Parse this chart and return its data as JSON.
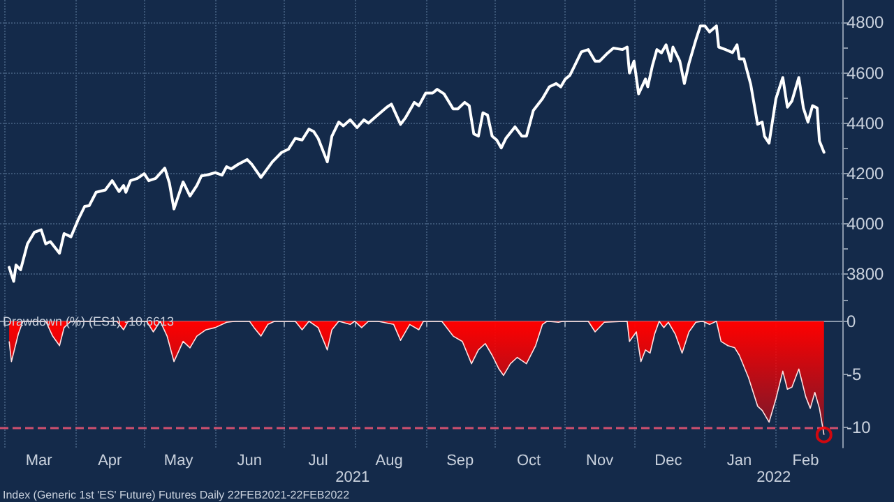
{
  "chart_data": [
    {
      "type": "line",
      "xlim": [
        "2021-02-27",
        "2022-03-02"
      ],
      "tick_labels": "y",
      "grid": true,
      "marker": "none",
      "xticks": [
        {
          "value": "2021-03-01",
          "label": null
        },
        {
          "value": "2021-04-01",
          "label": null
        },
        {
          "value": "2021-05-01",
          "label": null
        },
        {
          "value": "2021-06-01",
          "label": null
        },
        {
          "value": "2021-07-01",
          "label": null
        },
        {
          "value": "2021-08-01",
          "label": null
        },
        {
          "value": "2021-09-01",
          "label": null
        },
        {
          "value": "2021-10-01",
          "label": null
        },
        {
          "value": "2021-11-01",
          "label": null
        },
        {
          "value": "2021-12-01",
          "label": null
        },
        {
          "value": "2022-01-01",
          "label": null
        },
        {
          "value": "2022-02-01",
          "label": null
        }
      ],
      "ylim": [
        3660,
        4890
      ],
      "yticks": [
        {
          "value": 3700,
          "label": null
        },
        3800,
        {
          "value": 3900,
          "label": null
        },
        4000,
        {
          "value": 4100,
          "label": null
        },
        4200,
        {
          "value": 4300,
          "label": null
        },
        4400,
        {
          "value": 4500,
          "label": null
        },
        4600,
        {
          "value": 4700,
          "label": null
        },
        4800
      ],
      "series": [
        {
          "color": "#ffffff",
          "x": [
            "2021-03-03",
            "2021-03-05",
            "2021-03-06",
            "2021-03-08",
            "2021-03-11",
            "2021-03-14",
            "2021-03-17",
            "2021-03-19",
            "2021-03-21",
            "2021-03-25",
            "2021-03-27",
            "2021-03-30",
            "2021-04-02",
            "2021-04-05",
            "2021-04-07",
            "2021-04-10",
            "2021-04-14",
            "2021-04-17",
            "2021-04-20",
            "2021-04-22",
            "2021-04-23",
            "2021-04-25",
            "2021-04-28",
            "2021-05-01",
            "2021-05-03",
            "2021-05-06",
            "2021-05-10",
            "2021-05-12",
            "2021-05-14",
            "2021-05-18",
            "2021-05-21",
            "2021-05-24",
            "2021-05-26",
            "2021-05-29",
            "2021-06-01",
            "2021-06-04",
            "2021-06-06",
            "2021-06-08",
            "2021-06-11",
            "2021-06-15",
            "2021-06-17",
            "2021-06-21",
            "2021-06-26",
            "2021-06-30",
            "2021-07-03",
            "2021-07-06",
            "2021-07-09",
            "2021-07-12",
            "2021-07-14",
            "2021-07-16",
            "2021-07-20",
            "2021-07-22",
            "2021-07-25",
            "2021-07-27",
            "2021-07-30",
            "2021-08-02",
            "2021-08-05",
            "2021-08-07",
            "2021-08-11",
            "2021-08-15",
            "2021-08-17",
            "2021-08-21",
            "2021-08-23",
            "2021-08-27",
            "2021-08-29",
            "2021-09-01",
            "2021-09-04",
            "2021-09-06",
            "2021-09-09",
            "2021-09-13",
            "2021-09-15",
            "2021-09-18",
            "2021-09-20",
            "2021-09-22",
            "2021-09-24",
            "2021-09-26",
            "2021-09-28",
            "2021-09-30",
            "2021-10-02",
            "2021-10-04",
            "2021-10-06",
            "2021-10-10",
            "2021-10-13",
            "2021-10-15",
            "2021-10-18",
            "2021-10-22",
            "2021-10-25",
            "2021-10-28",
            "2021-10-30",
            "2021-11-01",
            "2021-11-03",
            "2021-11-05",
            "2021-11-08",
            "2021-11-11",
            "2021-11-14",
            "2021-11-16",
            "2021-11-19",
            "2021-11-22",
            "2021-11-26",
            "2021-11-28",
            "2021-11-29",
            "2021-12-01",
            "2021-12-03",
            "2021-12-06",
            "2021-12-07",
            "2021-12-09",
            "2021-12-11",
            "2021-12-13",
            "2021-12-15",
            "2021-12-17",
            "2021-12-18",
            "2021-12-21",
            "2021-12-23",
            "2021-12-25",
            "2021-12-28",
            "2021-12-30",
            "2022-01-01",
            "2022-01-03",
            "2022-01-06",
            "2022-01-07",
            "2022-01-10",
            "2022-01-13",
            "2022-01-15",
            "2022-01-16",
            "2022-01-18",
            "2022-01-21",
            "2022-01-24",
            "2022-01-26",
            "2022-01-27",
            "2022-01-29",
            "2022-02-01",
            "2022-02-04",
            "2022-02-06",
            "2022-02-08",
            "2022-02-11",
            "2022-02-13",
            "2022-02-15",
            "2022-02-17",
            "2022-02-19",
            "2022-02-20",
            "2022-02-22"
          ],
          "values": [
            3828,
            3772,
            3837,
            3818,
            3921,
            3967,
            3977,
            3921,
            3930,
            3884,
            3962,
            3949,
            4014,
            4070,
            4073,
            4126,
            4135,
            4172,
            4129,
            4153,
            4126,
            4172,
            4181,
            4200,
            4172,
            4181,
            4222,
            4163,
            4060,
            4167,
            4111,
            4153,
            4191,
            4196,
            4204,
            4194,
            4228,
            4219,
            4237,
            4256,
            4237,
            4185,
            4247,
            4284,
            4297,
            4340,
            4334,
            4377,
            4368,
            4340,
            4247,
            4349,
            4405,
            4390,
            4414,
            4383,
            4414,
            4401,
            4433,
            4464,
            4476,
            4396,
            4420,
            4483,
            4470,
            4520,
            4520,
            4535,
            4517,
            4457,
            4457,
            4483,
            4470,
            4358,
            4349,
            4442,
            4433,
            4349,
            4334,
            4302,
            4340,
            4386,
            4349,
            4349,
            4451,
            4498,
            4545,
            4558,
            4545,
            4576,
            4591,
            4628,
            4684,
            4693,
            4647,
            4647,
            4675,
            4699,
            4693,
            4703,
            4600,
            4647,
            4517,
            4576,
            4545,
            4628,
            4693,
            4680,
            4712,
            4647,
            4703,
            4647,
            4558,
            4638,
            4731,
            4787,
            4787,
            4763,
            4787,
            4703,
            4693,
            4681,
            4712,
            4656,
            4656,
            4554,
            4396,
            4405,
            4349,
            4321,
            4498,
            4582,
            4464,
            4489,
            4582,
            4461,
            4405,
            4470,
            4461,
            4330,
            4285
          ]
        }
      ]
    },
    {
      "type": "area",
      "title": "Drawdown (%) (ES1) -10.6613",
      "xlim": [
        "2021-02-27",
        "2022-03-02"
      ],
      "grid": "x",
      "xticks": [
        {
          "value": "2021-03-01",
          "label": null
        },
        {
          "value": "2021-04-01",
          "label": null
        },
        {
          "value": "2021-05-01",
          "label": null
        },
        {
          "value": "2021-06-01",
          "label": null
        },
        {
          "value": "2021-07-01",
          "label": null
        },
        {
          "value": "2021-08-01",
          "label": null
        },
        {
          "value": "2021-09-01",
          "label": null
        },
        {
          "value": "2021-10-01",
          "label": null
        },
        {
          "value": "2021-11-01",
          "label": null
        },
        {
          "value": "2021-12-01",
          "label": null
        },
        {
          "value": "2022-01-01",
          "label": null
        },
        {
          "value": "2022-02-01",
          "label": null
        },
        {
          "value": "2021-03-16",
          "label": "Mar"
        },
        {
          "value": "2021-04-16",
          "label": "Apr"
        },
        {
          "value": "2021-05-16",
          "label": "May"
        },
        {
          "value": "2021-06-16",
          "label": "Jun"
        },
        {
          "value": "2021-07-16",
          "label": "Jul"
        },
        {
          "value": "2021-08-16",
          "label": "Aug"
        },
        {
          "value": "2021-09-16",
          "label": "Sep"
        },
        {
          "value": "2021-10-16",
          "label": "Oct"
        },
        {
          "value": "2021-11-16",
          "label": "Nov"
        },
        {
          "value": "2021-12-16",
          "label": "Dec"
        },
        {
          "value": "2022-01-16",
          "label": "Jan"
        },
        {
          "value": "2022-02-14",
          "label": "Feb"
        }
      ],
      "ylim": [
        -11.9,
        1.1
      ],
      "yticks": [
        -10,
        -5,
        0
      ],
      "ref_lines": [
        {
          "axis": "y",
          "value": -10,
          "color": "#d0506e",
          "line_style": "dashed"
        }
      ],
      "annotations": [
        "2021",
        "2022",
        "Index (Generic 1st 'ES' Future) Futures Daily 22FEB2021-22FEB2022"
      ],
      "series": [
        {
          "color": "#ff0000",
          "x": [
            "2021-03-03",
            "2021-03-04",
            "2021-03-07",
            "2021-03-09",
            "2021-03-19",
            "2021-03-22",
            "2021-03-25",
            "2021-03-27",
            "2021-03-30",
            "2021-04-19",
            "2021-04-22",
            "2021-04-24",
            "2021-05-02",
            "2021-05-05",
            "2021-05-08",
            "2021-05-11",
            "2021-05-14",
            "2021-05-18",
            "2021-05-21",
            "2021-05-24",
            "2021-05-28",
            "2021-06-01",
            "2021-06-06",
            "2021-06-10",
            "2021-06-16",
            "2021-06-18",
            "2021-06-21",
            "2021-06-24",
            "2021-06-27",
            "2021-07-06",
            "2021-07-09",
            "2021-07-12",
            "2021-07-16",
            "2021-07-20",
            "2021-07-22",
            "2021-07-25",
            "2021-07-30",
            "2021-08-01",
            "2021-08-04",
            "2021-08-07",
            "2021-08-11",
            "2021-08-18",
            "2021-08-21",
            "2021-08-25",
            "2021-08-29",
            "2021-08-31",
            "2021-09-08",
            "2021-09-13",
            "2021-09-17",
            "2021-09-21",
            "2021-09-24",
            "2021-09-27",
            "2021-09-30",
            "2021-10-03",
            "2021-10-05",
            "2021-10-08",
            "2021-10-11",
            "2021-10-15",
            "2021-10-19",
            "2021-10-22",
            "2021-10-24",
            "2021-10-29",
            "2021-10-31",
            "2021-11-11",
            "2021-11-14",
            "2021-11-18",
            "2021-11-28",
            "2021-11-29",
            "2021-12-02",
            "2021-12-04",
            "2021-12-06",
            "2021-12-08",
            "2021-12-10",
            "2021-12-12",
            "2021-12-14",
            "2021-12-16",
            "2021-12-19",
            "2021-12-22",
            "2021-12-25",
            "2021-12-28",
            "2021-12-31",
            "2022-01-03",
            "2022-01-06",
            "2022-01-08",
            "2022-01-11",
            "2022-01-14",
            "2022-01-16",
            "2022-01-20",
            "2022-01-24",
            "2022-01-26",
            "2022-01-29",
            "2022-02-01",
            "2022-02-04",
            "2022-02-06",
            "2022-02-08",
            "2022-02-11",
            "2022-02-14",
            "2022-02-16",
            "2022-02-18",
            "2022-02-20",
            "2022-02-22"
          ],
          "values": [
            -1.9,
            -3.8,
            -1.2,
            0,
            0,
            -1.4,
            -2.3,
            -0.6,
            0,
            0,
            -0.8,
            0,
            0,
            -1.0,
            0,
            -1.4,
            -3.8,
            -1.9,
            -2.5,
            -1.4,
            -0.8,
            -0.6,
            -0.1,
            0,
            0,
            -0.6,
            -1.4,
            -0.3,
            0,
            0,
            -0.8,
            0,
            -0.6,
            -2.7,
            -0.8,
            0,
            -0.3,
            0,
            -0.6,
            0,
            0,
            -0.3,
            -1.8,
            -0.3,
            -0.8,
            0,
            0,
            -1.4,
            -1.9,
            -4.0,
            -2.7,
            -2.1,
            -3.2,
            -4.5,
            -5.1,
            -4.0,
            -3.4,
            -4.0,
            -2.3,
            -0.3,
            0,
            -0.1,
            0,
            0,
            -1.0,
            -0.1,
            0,
            -1.9,
            -1.0,
            -3.8,
            -2.7,
            -3.0,
            -1.2,
            0,
            -0.6,
            -0.1,
            -1.2,
            -3.0,
            -1.0,
            -0.1,
            0,
            -0.3,
            0,
            -1.9,
            -2.3,
            -2.5,
            -3.2,
            -5.3,
            -8.0,
            -8.4,
            -9.5,
            -7.3,
            -4.7,
            -6.4,
            -6.2,
            -4.5,
            -7.1,
            -8.2,
            -6.7,
            -8.2,
            -10.7
          ]
        },
        {
          "type": "scatter",
          "marker": "circle",
          "color": "#ff0000",
          "x": [
            "2022-02-22"
          ],
          "values": [
            -10.7
          ]
        }
      ]
    }
  ]
}
